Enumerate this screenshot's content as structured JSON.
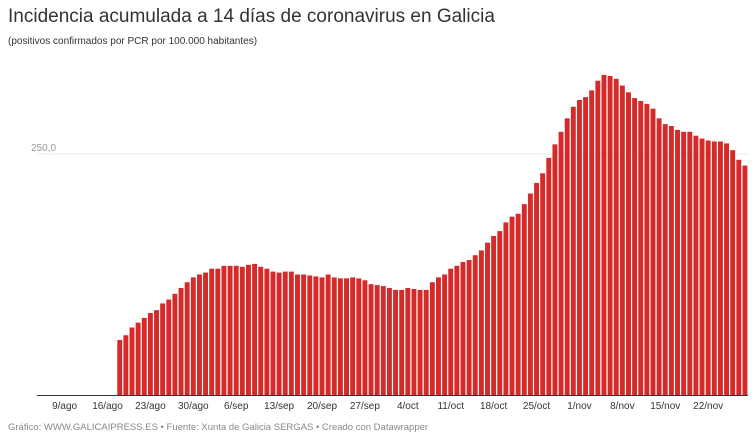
{
  "chart_data": {
    "type": "bar",
    "title": "Incidencia acumulada a 14 días de coronavirus en Galicia",
    "subtitle": "(positivos confirmados por PCR por 100.000 habitantes)",
    "footer": "Gráfico: WWW.GALICAIPRESS.ES • Fuente: Xunta de Galicia SERGAS • Creado con Datawrapper",
    "color": "#d62a2a",
    "ylim": [
      0,
      345
    ],
    "grid": true,
    "y_ticks": [
      {
        "value": 250,
        "label": "250,0"
      }
    ],
    "x_ticks": [
      "9/ago",
      "16/ago",
      "23/ago",
      "30/ago",
      "6/sep",
      "13/sep",
      "20/sep",
      "27/sep",
      "4/oct",
      "11/oct",
      "18/oct",
      "25/oct",
      "1/nov",
      "8/nov",
      "15/nov",
      "22/nov"
    ],
    "x_range": [
      "5/ago",
      "28/nov"
    ],
    "first_date": "18/ago",
    "values": [
      57,
      62,
      70,
      75,
      80,
      85,
      88,
      95,
      99,
      105,
      111,
      117,
      122,
      125,
      127,
      131,
      131,
      134,
      134,
      134,
      133,
      135,
      136,
      133,
      131,
      128,
      127,
      128,
      128,
      125,
      125,
      124,
      123,
      122,
      125,
      122,
      121,
      121,
      122,
      121,
      119,
      115,
      114,
      113,
      111,
      109,
      109,
      111,
      110,
      109,
      109,
      117,
      122,
      125,
      131,
      134,
      138,
      140,
      145,
      150,
      158,
      165,
      170,
      179,
      185,
      188,
      198,
      209,
      220,
      230,
      246,
      260,
      273,
      287,
      299,
      306,
      309,
      316,
      326,
      332,
      331,
      328,
      321,
      314,
      308,
      305,
      302,
      297,
      287,
      281,
      279,
      275,
      273,
      273,
      269,
      266,
      264,
      263,
      263,
      261,
      254,
      244,
      238
    ]
  }
}
